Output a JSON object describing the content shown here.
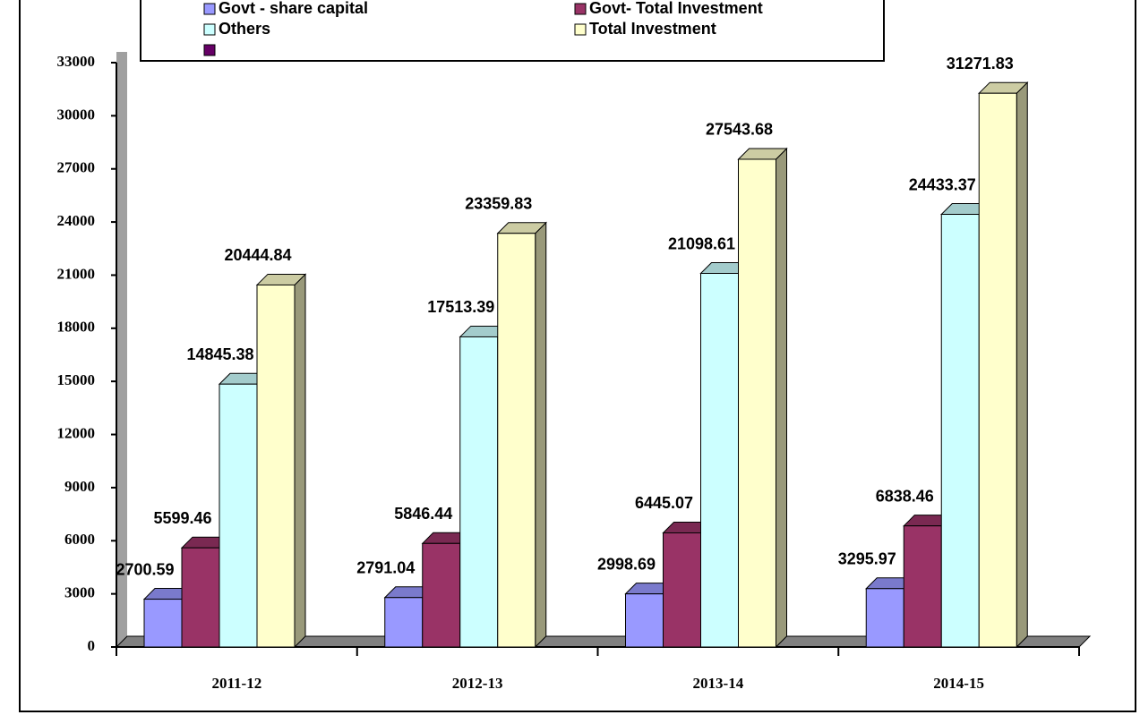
{
  "chart_data": {
    "type": "bar",
    "categories": [
      "2011-12",
      "2012-13",
      "2013-14",
      "2014-15"
    ],
    "series": [
      {
        "name": "Govt - share capital",
        "color": "#9999ff",
        "values": [
          2700.59,
          2791.04,
          2998.69,
          3295.97
        ]
      },
      {
        "name": "Govt- Total Investment",
        "color": "#993366",
        "values": [
          5599.46,
          5846.44,
          6445.07,
          6838.46
        ]
      },
      {
        "name": "Others",
        "color": "#ccffff",
        "values": [
          14845.38,
          17513.39,
          21098.61,
          24433.37
        ]
      },
      {
        "name": "Total Investment",
        "color": "#ffffcc",
        "values": [
          20444.84,
          23359.83,
          27543.68,
          31271.83
        ]
      }
    ],
    "ylim": [
      0,
      33000
    ],
    "yticks": [
      0,
      3000,
      6000,
      9000,
      12000,
      15000,
      18000,
      21000,
      24000,
      27000,
      30000,
      33000
    ],
    "legend": "top"
  }
}
